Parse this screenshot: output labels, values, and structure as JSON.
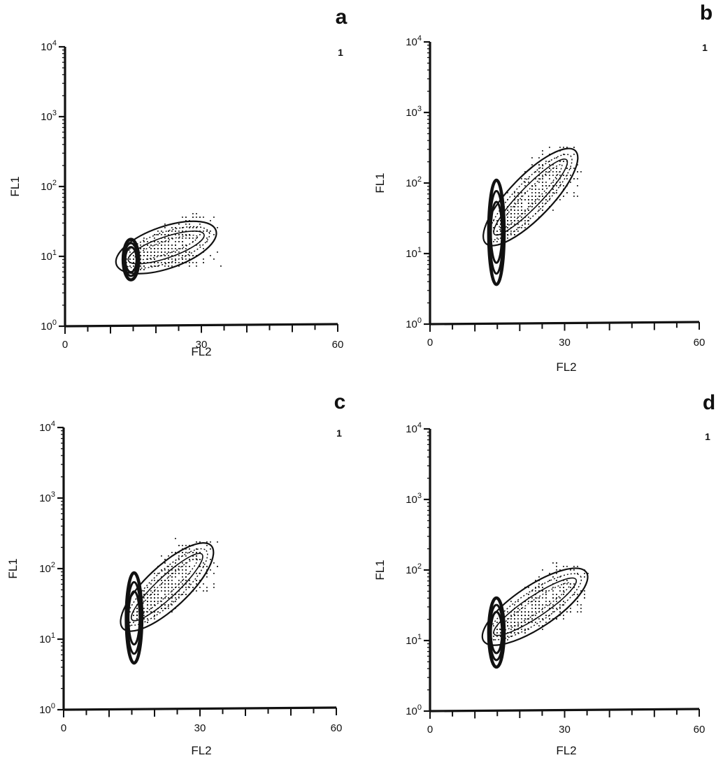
{
  "chart_data": [
    {
      "type": "contour",
      "panel": "a",
      "xlabel": "FL2",
      "ylabel": "FL1",
      "xlim": [
        0,
        60
      ],
      "ylim": [
        1,
        10000
      ],
      "yscale": "log",
      "xticks": [
        "0",
        "30",
        "60"
      ],
      "yticks": [
        "10^0",
        "10^1",
        "10^2",
        "10^3",
        "10^4"
      ],
      "corner_marker": "1",
      "population": {
        "core": {
          "x": 14.5,
          "y": 9,
          "width_x": 2,
          "decades_y": 0.5
        },
        "tail_end": {
          "x": 30,
          "y": 20
        },
        "outer_extent": {
          "xmin": 12,
          "xmax": 35,
          "ymin": 4.5,
          "ymax": 45
        }
      }
    },
    {
      "type": "contour",
      "panel": "b",
      "xlabel": "FL2",
      "ylabel": "FL1",
      "xlim": [
        0,
        60
      ],
      "ylim": [
        1,
        10000
      ],
      "yscale": "log",
      "xticks": [
        "0",
        "30",
        "60"
      ],
      "yticks": [
        "10^0",
        "10^1",
        "10^2",
        "10^3",
        "10^4"
      ],
      "corner_marker": "1",
      "population": {
        "core": {
          "x": 14.8,
          "y": 20,
          "width_x": 2,
          "decades_y": 1.4
        },
        "tail_end": {
          "x": 30,
          "y": 200
        },
        "outer_extent": {
          "xmin": 11,
          "xmax": 34,
          "ymin": 5,
          "ymax": 350
        }
      }
    },
    {
      "type": "contour",
      "panel": "c",
      "xlabel": "FL2",
      "ylabel": "FL1",
      "xlim": [
        0,
        60
      ],
      "ylim": [
        1,
        10000
      ],
      "yscale": "log",
      "xticks": [
        "0",
        "30",
        "60"
      ],
      "yticks": [
        "10^0",
        "10^1",
        "10^2",
        "10^3",
        "10^4"
      ],
      "corner_marker": "1",
      "population": {
        "core": {
          "x": 15.5,
          "y": 20,
          "width_x": 2,
          "decades_y": 1.2
        },
        "tail_end": {
          "x": 30,
          "y": 150
        },
        "outer_extent": {
          "xmin": 11,
          "xmax": 36,
          "ymin": 5.5,
          "ymax": 280
        }
      }
    },
    {
      "type": "contour",
      "panel": "d",
      "xlabel": "FL2",
      "ylabel": "FL1",
      "xlim": [
        0,
        60
      ],
      "ylim": [
        1,
        10000
      ],
      "yscale": "log",
      "xticks": [
        "0",
        "30",
        "60"
      ],
      "yticks": [
        "10^0",
        "10^1",
        "10^2",
        "10^3",
        "10^4"
      ],
      "corner_marker": "1",
      "population": {
        "core": {
          "x": 14.8,
          "y": 13,
          "width_x": 2,
          "decades_y": 0.9
        },
        "tail_end": {
          "x": 32,
          "y": 70
        },
        "outer_extent": {
          "xmin": 11,
          "xmax": 35,
          "ymin": 5,
          "ymax": 130
        }
      }
    }
  ]
}
